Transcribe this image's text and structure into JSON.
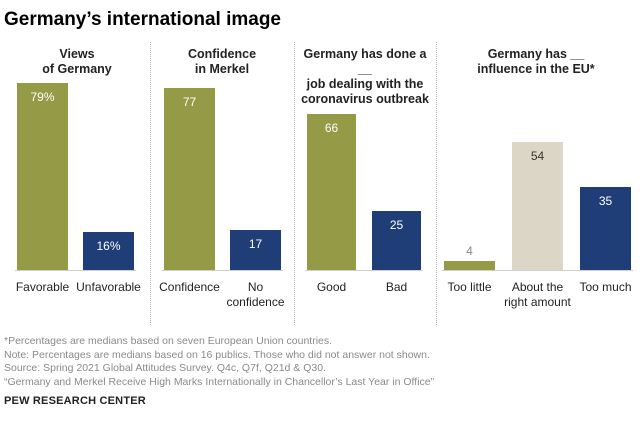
{
  "title": "Germany’s international image",
  "colors": {
    "green": "#949a45",
    "navy": "#1f3e77",
    "beige": "#dbd6c6",
    "value_light": "#ffffff",
    "value_dark": "#333333",
    "value_grey": "#888888"
  },
  "chart_data": [
    {
      "type": "bar",
      "title": "Views\nof Germany",
      "categories": [
        "Favorable",
        "Unfavorable"
      ],
      "values": [
        79,
        16
      ],
      "value_labels": [
        "79%",
        "16%"
      ],
      "bar_colors": [
        "green",
        "navy"
      ],
      "label_colors": [
        "value_light",
        "value_light"
      ],
      "ylim": [
        0,
        79
      ]
    },
    {
      "type": "bar",
      "title": "Confidence\nin Merkel",
      "categories": [
        "Confidence",
        "No\nconfidence"
      ],
      "values": [
        77,
        17
      ],
      "value_labels": [
        "77",
        "17"
      ],
      "bar_colors": [
        "green",
        "navy"
      ],
      "label_colors": [
        "value_light",
        "value_light"
      ],
      "ylim": [
        0,
        79
      ]
    },
    {
      "type": "bar",
      "title": "Germany has done a __\njob dealing with the\ncoronavirus outbreak",
      "categories": [
        "Good",
        "Bad"
      ],
      "values": [
        66,
        25
      ],
      "value_labels": [
        "66",
        "25"
      ],
      "bar_colors": [
        "green",
        "navy"
      ],
      "label_colors": [
        "value_light",
        "value_light"
      ],
      "ylim": [
        0,
        79
      ]
    },
    {
      "type": "bar",
      "title": "Germany has __\ninfluence in the EU*",
      "categories": [
        "Too little",
        "About the\nright amount",
        "Too much"
      ],
      "values": [
        4,
        54,
        35
      ],
      "value_labels": [
        "4",
        "54",
        "35"
      ],
      "bar_colors": [
        "green",
        "beige",
        "navy"
      ],
      "label_colors": [
        "value_grey",
        "value_dark",
        "value_light"
      ],
      "ylim": [
        0,
        79
      ]
    }
  ],
  "footnotes": [
    "*Percentages are medians based on seven European Union countries.",
    "Note: Percentages are medians based on 16 publics. Those who did not answer not shown.",
    "Source: Spring 2021 Global Attitudes Survey. Q4c, Q7f, Q21d & Q30.",
    "“Germany and Merkel Receive High Marks Internationally in Chancellor’s Last Year in Office”"
  ],
  "source_org": "PEW RESEARCH CENTER"
}
